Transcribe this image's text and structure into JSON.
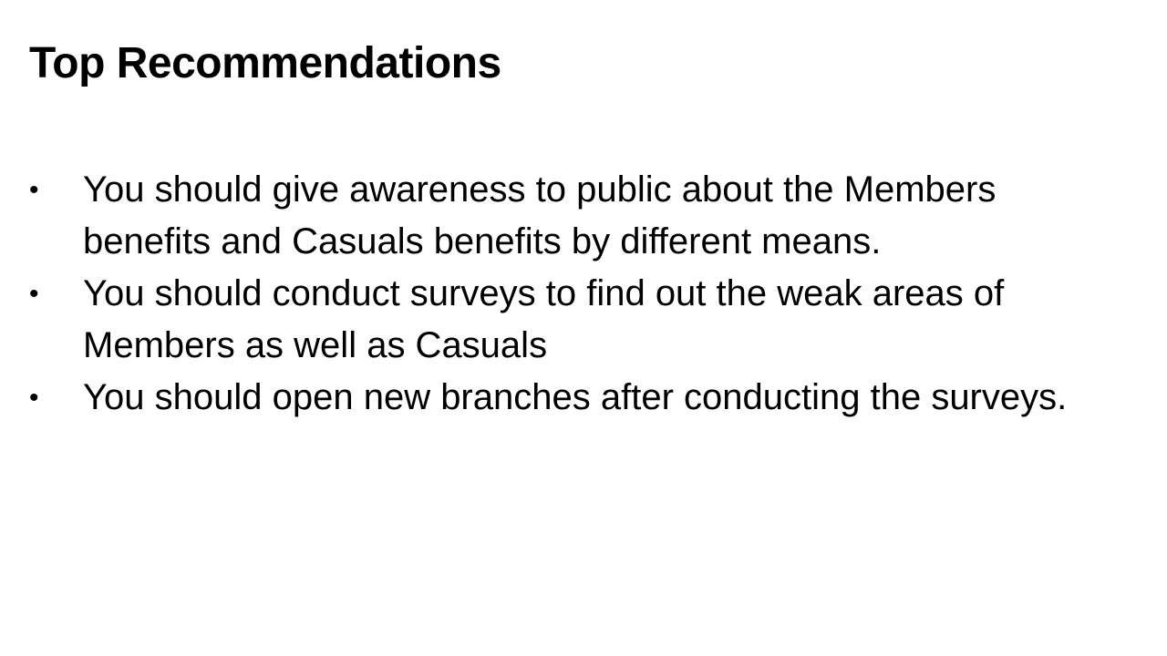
{
  "slide": {
    "title": "Top Recommendations",
    "bullets": [
      {
        "marker": "•",
        "text": "You should give awareness to public about the Members benefits and Casuals benefits by different means."
      },
      {
        "marker": "•",
        "text": "You should conduct surveys to find out the weak areas of Members as well as Casuals"
      },
      {
        "marker": "•",
        "text": "You should open new branches after conducting the surveys."
      }
    ]
  },
  "colors": {
    "background": "#ffffff",
    "text": "#000000"
  }
}
